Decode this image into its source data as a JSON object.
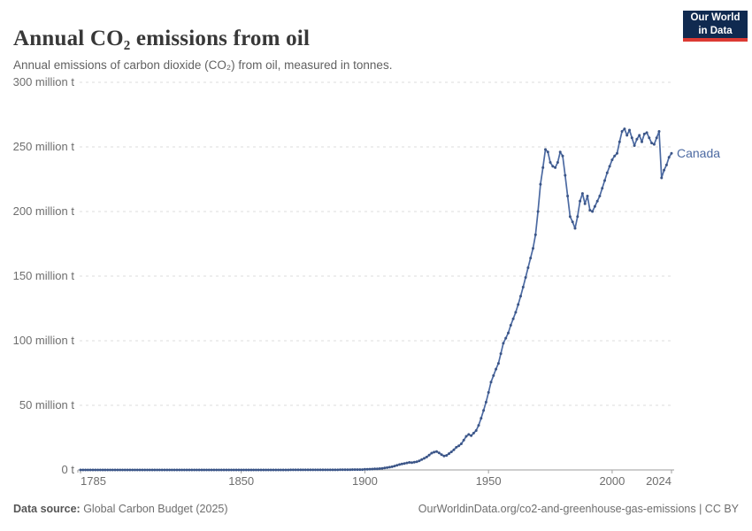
{
  "header": {
    "title": "Annual CO₂ emissions from oil",
    "subtitle": "Annual emissions of carbon dioxide (CO₂) from oil, measured in tonnes."
  },
  "logo": {
    "line1": "Our World",
    "line2": "in Data",
    "bg_color": "#102a50",
    "accent_color": "#dc3a33",
    "text_color": "#ffffff"
  },
  "footer": {
    "source_label": "Data source:",
    "source_value": " Global Carbon Budget (2025)",
    "right_text": "OurWorldinData.org/co2-and-greenhouse-gas-emissions | CC BY"
  },
  "chart_data": {
    "type": "line",
    "title": "Annual CO₂ emissions from oil",
    "xlabel": "",
    "ylabel": "",
    "ylim": [
      0,
      300
    ],
    "grid": "dashed-horizontal",
    "legend": "end-of-line-label",
    "unit": "million tonnes",
    "yticks": [
      {
        "value": 0,
        "label": "0 t"
      },
      {
        "value": 50,
        "label": "50 million t"
      },
      {
        "value": 100,
        "label": "100 million t"
      },
      {
        "value": 150,
        "label": "150 million t"
      },
      {
        "value": 200,
        "label": "200 million t"
      },
      {
        "value": 250,
        "label": "250 million t"
      },
      {
        "value": 300,
        "label": "300 million t"
      }
    ],
    "xticks": [
      1785,
      1850,
      1900,
      1950,
      2000,
      2024
    ],
    "colors": {
      "grid": "#dedede",
      "axis": "#9e9e9e",
      "tick_label": "#6e6e6e"
    },
    "series": [
      {
        "name": "Canada",
        "color": "#4c6aa2",
        "marker_color": "#3b5587",
        "start_year": 1785,
        "end_year": 2024,
        "values": [
          0,
          0,
          0,
          0,
          0,
          0,
          0,
          0,
          0,
          0,
          0,
          0,
          0,
          0,
          0,
          0,
          0,
          0,
          0,
          0,
          0,
          0,
          0,
          0,
          0,
          0,
          0,
          0,
          0,
          0,
          0,
          0,
          0,
          0,
          0,
          0,
          0,
          0,
          0,
          0,
          0,
          0,
          0,
          0,
          0,
          0,
          0,
          0,
          0,
          0,
          0,
          0,
          0,
          0,
          0,
          0,
          0,
          0,
          0,
          0,
          0,
          0,
          0,
          0,
          0,
          0,
          0,
          0,
          0,
          0,
          0,
          0,
          0,
          0,
          0,
          0,
          0,
          0,
          0,
          0,
          0,
          0,
          0,
          0,
          0,
          0.05,
          0.05,
          0.05,
          0.05,
          0.05,
          0.05,
          0.05,
          0.05,
          0.05,
          0.05,
          0.1,
          0.1,
          0.1,
          0.1,
          0.1,
          0.1,
          0.1,
          0.1,
          0.1,
          0.1,
          0.2,
          0.2,
          0.2,
          0.2,
          0.2,
          0.3,
          0.3,
          0.3,
          0.3,
          0.3,
          0.5,
          0.5,
          0.6,
          0.7,
          0.8,
          0.9,
          1.0,
          1.2,
          1.5,
          1.8,
          2.1,
          2.5,
          3.0,
          3.6,
          4.2,
          4.6,
          5.0,
          5.4,
          5.8,
          5.6,
          6.0,
          6.3,
          7.0,
          8.0,
          9.0,
          10.0,
          11.5,
          13.0,
          13.8,
          14.2,
          13.2,
          11.8,
          10.8,
          11.2,
          12.6,
          14.0,
          15.6,
          17.5,
          18.6,
          20.2,
          23.0,
          26.0,
          27.5,
          26.5,
          28.5,
          30.5,
          34.5,
          40.0,
          46.0,
          52.5,
          60.0,
          68.0,
          73.0,
          78.0,
          82.5,
          90.0,
          98.0,
          102.0,
          106.0,
          112.0,
          117.0,
          122.0,
          128.0,
          134.5,
          141.5,
          149.0,
          156.5,
          164.0,
          171.5,
          182.0,
          200.0,
          221.0,
          234.0,
          248.0,
          246.0,
          238.0,
          235.0,
          234.0,
          238.0,
          246.0,
          243.0,
          228.0,
          212.0,
          196.0,
          192.0,
          187.0,
          196.0,
          208.0,
          214.0,
          206.0,
          212.0,
          201.0,
          200.0,
          204.0,
          208.0,
          212.0,
          218.0,
          224.0,
          230.0,
          235.0,
          240.0,
          243.0,
          245.0,
          254.0,
          262.0,
          264.0,
          259.0,
          263.0,
          257.0,
          251.0,
          256.0,
          259.0,
          254.0,
          260.0,
          261.0,
          257.0,
          253.0,
          252.0,
          257.0,
          262.0,
          226.0,
          232.0,
          236.0,
          242.0,
          245.0
        ]
      }
    ]
  }
}
